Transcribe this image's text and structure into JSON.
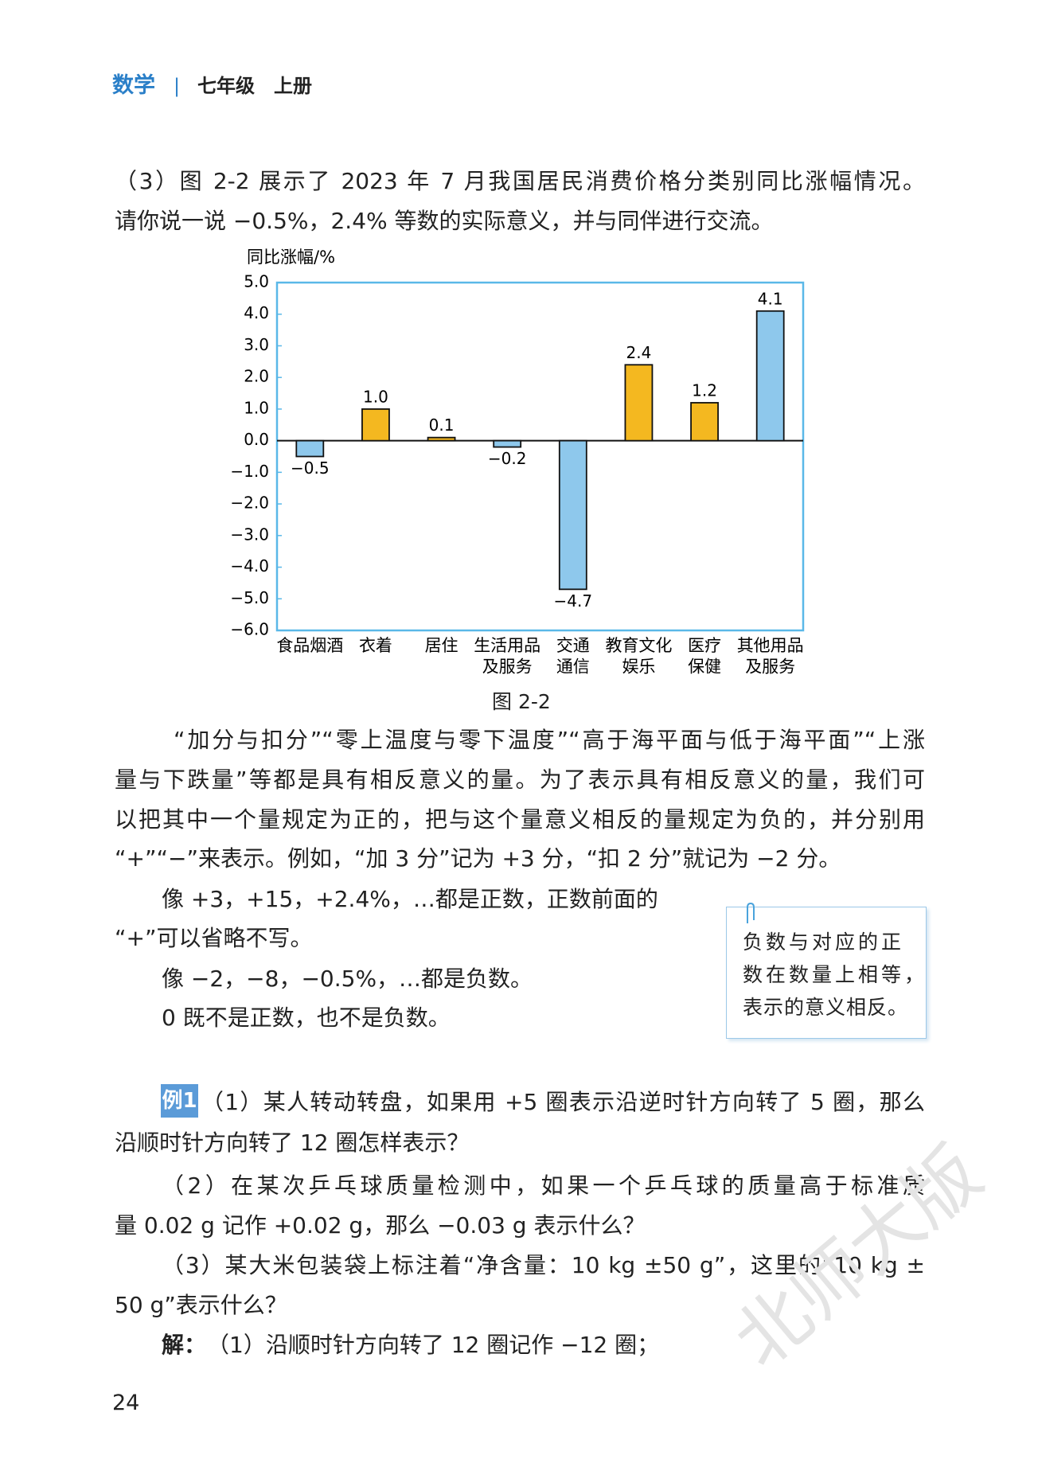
{
  "header": {
    "subject": "数学",
    "separator": "|",
    "grade": "七年级　上册"
  },
  "paragraph1": [
    "（3）图 2-2 展示了 2023 年 7 月我国居民消费价格分类别同比涨幅情况。",
    "请你说一说 −0.5%，2.4% 等数的实际意义，并与同伴进行交流。"
  ],
  "chart_data": {
    "type": "bar",
    "y_axis_label": "同比涨幅/%",
    "categories": [
      "食品烟酒",
      "衣着",
      "居住",
      "生活用品\n及服务",
      "交通\n通信",
      "教育文化\n娱乐",
      "医疗\n保健",
      "其他用品\n及服务"
    ],
    "values": [
      -0.5,
      1.0,
      0.1,
      -0.2,
      -4.7,
      2.4,
      1.2,
      4.1
    ],
    "value_labels": [
      "−0.5",
      "1.0",
      "0.1",
      "−0.2",
      "−4.7",
      "2.4",
      "1.2",
      "4.1"
    ],
    "colors": [
      "#8ec8ec",
      "#f4b820",
      "#f4b820",
      "#8ec8ec",
      "#8ec8ec",
      "#f4b820",
      "#f4b820",
      "#8ec8ec"
    ],
    "ylim": [
      -6,
      5
    ],
    "yticks": [
      {
        "value": 5,
        "label": "5.0"
      },
      {
        "value": 4,
        "label": "4.0"
      },
      {
        "value": 3,
        "label": "3.0"
      },
      {
        "value": 2,
        "label": "2.0"
      },
      {
        "value": 1,
        "label": "1.0"
      },
      {
        "value": 0,
        "label": "0.0"
      },
      {
        "value": -1,
        "label": "−1.0"
      },
      {
        "value": -2,
        "label": "−2.0"
      },
      {
        "value": -3,
        "label": "−3.0"
      },
      {
        "value": -4,
        "label": "−4.0"
      },
      {
        "value": -5,
        "label": "−5.0"
      },
      {
        "value": -6,
        "label": "−6.0"
      }
    ],
    "frame_color": "#5ab8e8"
  },
  "caption": "图 2-2",
  "paragraph2": [
    "“加分与扣分”“零上温度与零下温度”“高于海平面与低于海平面”“上涨",
    "量与下跌量”等都是具有相反意义的量。为了表示具有相反意义的量，我们可",
    "以把其中一个量规定为正的，把与这个量意义相反的量规定为负的，并分别用",
    "“+”“−”来表示。例如，“加 3 分”记为 +3 分，“扣 2 分”就记为 −2 分。"
  ],
  "paragraph3": [
    "像 +3，+15，+2.4%，…都是正数，正数前面的",
    "“+”可以省略不写。",
    "像 −2，−8，−0.5%，…都是负数。",
    "0 既不是正数，也不是负数。"
  ],
  "note": [
    "负数与对应的正",
    "数在数量上相等，",
    "表示的意义相反。"
  ],
  "example": {
    "tag": "例1",
    "lines": [
      "（1）某人转动转盘，如果用 +5 圈表示沿逆时针方向转了 5 圈，那么",
      "沿顺时针方向转了 12 圈怎样表示？",
      "（2）在某次乒乓球质量检测中，如果一个乒乓球的质量高于标准质",
      "量 0.02 g 记作 +0.02 g，那么 −0.03 g 表示什么？",
      "（3）某大米包装袋上标注着“净含量：10 kg ±50 g”，这里的“10 kg ±",
      "50 g”表示什么？"
    ],
    "solution_label": "解：",
    "solution": "（1）沿顺时针方向转了 12 圈记作 −12 圈；"
  },
  "page_number": "24",
  "watermark": "北师大版"
}
